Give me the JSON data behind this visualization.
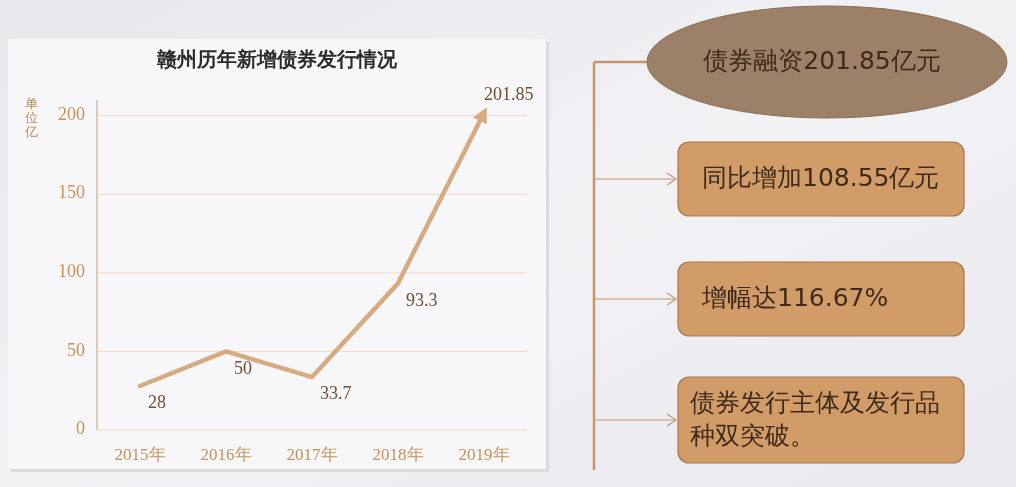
{
  "chart_data": {
    "type": "line",
    "title": "赣州历年新增债券发行情况",
    "ylabel": "单位亿",
    "categories": [
      "2015年",
      "2016年",
      "2017年",
      "2018年",
      "2019年"
    ],
    "values": [
      28,
      50,
      33.7,
      93.3,
      201.85
    ],
    "color": "#d6ab82",
    "ylim": [
      0,
      210
    ],
    "yticks": [
      0,
      50,
      100,
      150,
      200
    ],
    "grid": "y",
    "data_labels": true,
    "annotations": [
      "债券融资201.85亿元",
      "同比增加108.55亿元",
      "增幅达116.67%",
      "债券发行主体及发行品种双突破。"
    ]
  }
}
